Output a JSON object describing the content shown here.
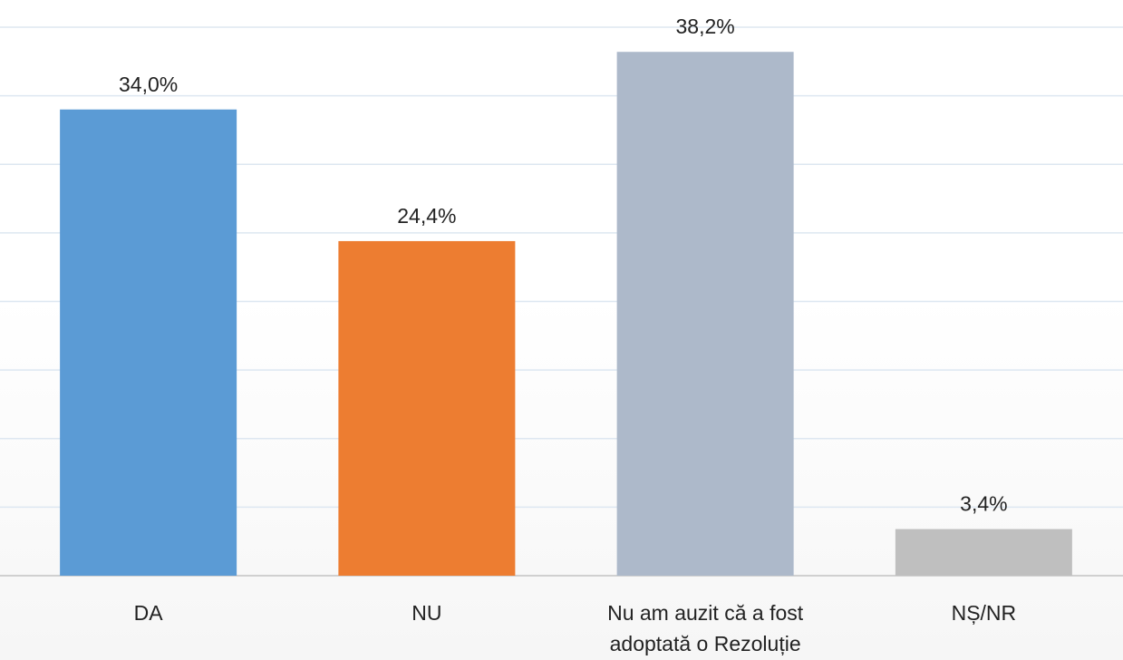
{
  "chart_data": {
    "type": "bar",
    "categories": [
      "DA",
      "NU",
      "Nu am auzit că a fost adoptată o Rezoluție",
      "NȘ/NR"
    ],
    "values": [
      34.0,
      24.4,
      38.2,
      3.4
    ],
    "value_labels": [
      "34,0%",
      "24,4%",
      "38,2%",
      "3,4%"
    ],
    "colors": [
      "#5b9bd5",
      "#ed7d31",
      "#adb9ca",
      "#bfbfbf"
    ],
    "ylim": [
      0,
      40
    ],
    "yticks": [
      0,
      5,
      10,
      15,
      20,
      25,
      30,
      35,
      40
    ],
    "grid": true
  }
}
